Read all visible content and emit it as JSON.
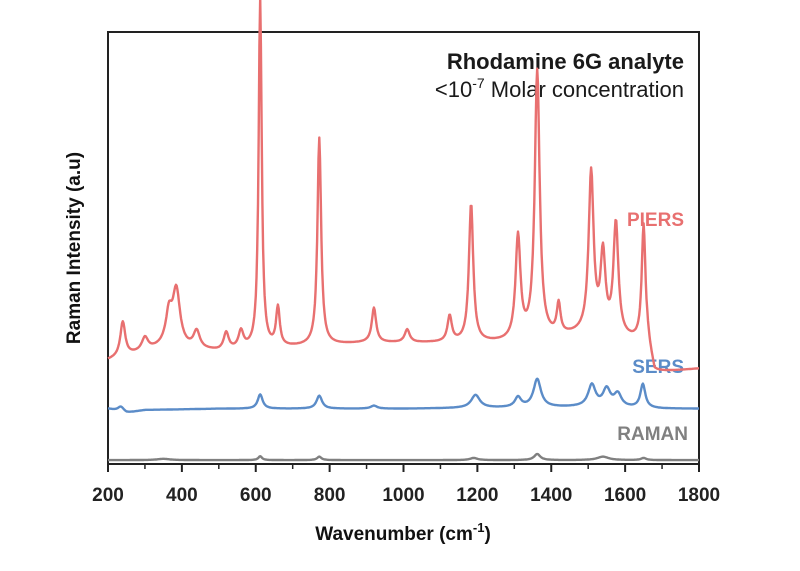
{
  "chart_data": {
    "type": "line",
    "title": "Rhodamine 6G analyte",
    "subtitle_prefix": "<10",
    "subtitle_exponent": "-7",
    "subtitle_suffix": " Molar concentration",
    "xlabel_main": "Wavenumber (cm",
    "xlabel_exponent": "-1",
    "xlabel_close": ")",
    "ylabel": "Raman Intensity (a.u)",
    "xlim": [
      200,
      1800
    ],
    "ylim": [
      0,
      100
    ],
    "x_ticks": [
      200,
      400,
      600,
      800,
      1000,
      1200,
      1400,
      1600,
      1800
    ],
    "x_tick_labels": [
      "200",
      "400",
      "600",
      "800",
      "1000",
      "1200",
      "1400",
      "1600",
      "1800"
    ],
    "x_minor_ticks": [
      300,
      500,
      700,
      900,
      1100,
      1300,
      1500,
      1700
    ],
    "series": [
      {
        "name": "PIERS",
        "color": "#E87070",
        "baseline": [
          [
            200,
            24
          ],
          [
            350,
            27
          ],
          [
            500,
            26
          ],
          [
            700,
            27
          ],
          [
            900,
            28
          ],
          [
            1100,
            28
          ],
          [
            1300,
            28
          ],
          [
            1500,
            30
          ],
          [
            1660,
            28
          ],
          [
            1680,
            21
          ],
          [
            1800,
            22
          ]
        ],
        "peaks": [
          {
            "x": 240,
            "h": 8,
            "w": 8
          },
          {
            "x": 300,
            "h": 3,
            "w": 10
          },
          {
            "x": 365,
            "h": 7,
            "w": 10
          },
          {
            "x": 385,
            "h": 13,
            "w": 12
          },
          {
            "x": 440,
            "h": 4,
            "w": 10
          },
          {
            "x": 520,
            "h": 4,
            "w": 8
          },
          {
            "x": 560,
            "h": 4,
            "w": 8
          },
          {
            "x": 612,
            "h": 81,
            "w": 5
          },
          {
            "x": 660,
            "h": 9,
            "w": 6
          },
          {
            "x": 772,
            "h": 48,
            "w": 6
          },
          {
            "x": 920,
            "h": 8,
            "w": 7
          },
          {
            "x": 1010,
            "h": 3,
            "w": 8
          },
          {
            "x": 1125,
            "h": 6,
            "w": 7
          },
          {
            "x": 1183,
            "h": 32,
            "w": 7
          },
          {
            "x": 1310,
            "h": 24,
            "w": 8
          },
          {
            "x": 1362,
            "h": 62,
            "w": 8
          },
          {
            "x": 1420,
            "h": 7,
            "w": 6
          },
          {
            "x": 1508,
            "h": 37,
            "w": 8
          },
          {
            "x": 1540,
            "h": 18,
            "w": 8
          },
          {
            "x": 1575,
            "h": 26,
            "w": 8
          },
          {
            "x": 1650,
            "h": 27,
            "w": 6
          }
        ]
      },
      {
        "name": "SERS",
        "color": "#5B8CC8",
        "baseline": [
          [
            200,
            12.8
          ],
          [
            250,
            11.8
          ],
          [
            300,
            12.5
          ],
          [
            500,
            12.8
          ],
          [
            1000,
            12.8
          ],
          [
            1500,
            13.2
          ],
          [
            1700,
            12.8
          ],
          [
            1800,
            12.8
          ]
        ],
        "peaks": [
          {
            "x": 235,
            "h": 1.2,
            "w": 10
          },
          {
            "x": 612,
            "h": 3.3,
            "w": 8
          },
          {
            "x": 772,
            "h": 3.0,
            "w": 9
          },
          {
            "x": 920,
            "h": 0.7,
            "w": 10
          },
          {
            "x": 1195,
            "h": 3.0,
            "w": 14
          },
          {
            "x": 1310,
            "h": 2.3,
            "w": 10
          },
          {
            "x": 1362,
            "h": 6.5,
            "w": 12
          },
          {
            "x": 1510,
            "h": 5.0,
            "w": 12
          },
          {
            "x": 1550,
            "h": 4.0,
            "w": 12
          },
          {
            "x": 1580,
            "h": 3.0,
            "w": 12
          },
          {
            "x": 1648,
            "h": 5.5,
            "w": 8
          }
        ]
      },
      {
        "name": "RAMAN",
        "color": "#808080",
        "baseline": [
          [
            200,
            0.9
          ],
          [
            1800,
            0.9
          ]
        ],
        "peaks": [
          {
            "x": 350,
            "h": 0.3,
            "w": 20
          },
          {
            "x": 612,
            "h": 0.9,
            "w": 6
          },
          {
            "x": 772,
            "h": 0.8,
            "w": 7
          },
          {
            "x": 1190,
            "h": 0.5,
            "w": 12
          },
          {
            "x": 1362,
            "h": 1.4,
            "w": 10
          },
          {
            "x": 1540,
            "h": 0.8,
            "w": 18
          },
          {
            "x": 1650,
            "h": 0.5,
            "w": 8
          }
        ]
      }
    ],
    "series_labels": [
      "PIERS",
      "SERS",
      "RAMAN"
    ]
  }
}
